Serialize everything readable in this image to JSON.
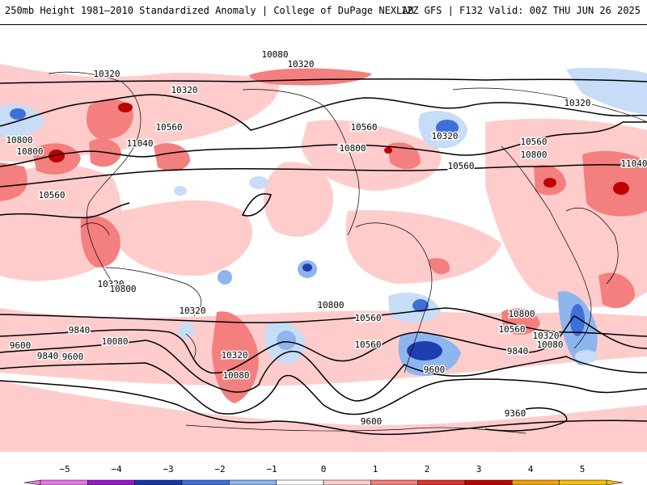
{
  "header": {
    "left_title": "250mb Height 1981–2010 Standardized Anomaly | College of DuPage NEXLAB",
    "right_title": "12Z GFS | F132 Valid: 00Z THU JUN 26 2025"
  },
  "map": {
    "contour_labels": [
      "10080",
      "10320",
      "10320",
      "10320",
      "10560",
      "10560",
      "10800",
      "10800",
      "11040",
      "10800",
      "10560",
      "10560",
      "10800",
      "10560",
      "10320",
      "10080",
      "10320",
      "9840",
      "9600",
      "9840",
      "9600",
      "10080",
      "10320",
      "10560",
      "10800",
      "10800",
      "10560",
      "10320",
      "10080",
      "9840",
      "9600",
      "9600",
      "9360",
      "10080",
      "10320",
      "10560",
      "10800",
      "11040",
      "10320",
      "10560",
      "10800",
      "10800",
      "10560"
    ],
    "colors": {
      "pos1": "#ffcccc",
      "pos2": "#f47f7f",
      "pos3": "#e03030",
      "pos4": "#c00000",
      "neg1": "#c6dcf7",
      "neg2": "#8eb5ee",
      "neg3": "#3f6fd8",
      "neg4": "#1f3fb0",
      "land": "#000000"
    }
  },
  "colorbar": {
    "ticks": [
      "−5",
      "−4",
      "−3",
      "−2",
      "−1",
      "0",
      "1",
      "2",
      "3",
      "4",
      "5"
    ],
    "colors": [
      "#e875e8",
      "#9b19c8",
      "#1438a8",
      "#3f6fd8",
      "#8eb5ee",
      "#ffffff",
      "#ffcccc",
      "#f47f7f",
      "#e03030",
      "#c00000",
      "#f5a000",
      "#f5c000"
    ]
  }
}
